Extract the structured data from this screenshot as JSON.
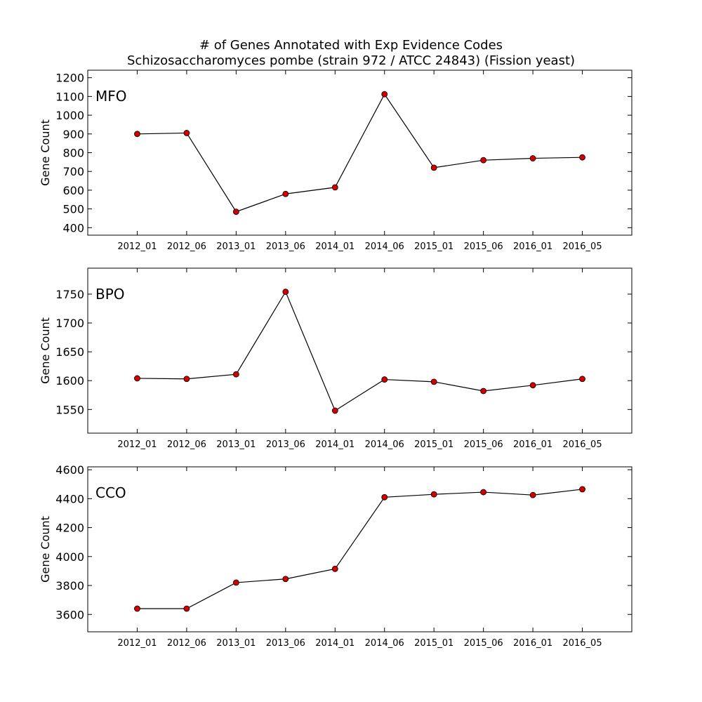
{
  "title": "# of Genes Annotated with Exp Evidence Codes",
  "subtitle": "Schizosaccharomyces pombe (strain 972 / ATCC 24843) (Fission yeast)",
  "colors": {
    "marker": "#d00000",
    "line": "#000000",
    "axes": "#000000"
  },
  "chart_data": [
    {
      "type": "line",
      "label": "MFO",
      "ylabel": "Gene Count",
      "categories": [
        "2012_01",
        "2012_06",
        "2013_01",
        "2013_06",
        "2014_01",
        "2014_06",
        "2015_01",
        "2015_06",
        "2016_01",
        "2016_05"
      ],
      "values": [
        900,
        905,
        485,
        580,
        615,
        1112,
        720,
        760,
        770,
        775
      ],
      "ylim": [
        360,
        1240
      ],
      "yticks": [
        400,
        500,
        600,
        700,
        800,
        900,
        1000,
        1100,
        1200
      ],
      "grid": false
    },
    {
      "type": "line",
      "label": "BPO",
      "ylabel": "Gene Count",
      "categories": [
        "2012_01",
        "2012_06",
        "2013_01",
        "2013_06",
        "2014_01",
        "2014_06",
        "2015_01",
        "2015_06",
        "2016_01",
        "2016_05"
      ],
      "values": [
        1604,
        1603,
        1611,
        1754,
        1548,
        1602,
        1598,
        1582,
        1592,
        1603
      ],
      "ylim": [
        1509,
        1795
      ],
      "yticks": [
        1550,
        1600,
        1650,
        1700,
        1750
      ],
      "grid": false
    },
    {
      "type": "line",
      "label": "CCO",
      "ylabel": "Gene Count",
      "categories": [
        "2012_01",
        "2012_06",
        "2013_01",
        "2013_06",
        "2014_01",
        "2014_06",
        "2015_01",
        "2015_06",
        "2016_01",
        "2016_05"
      ],
      "values": [
        3640,
        3640,
        3820,
        3845,
        3915,
        4410,
        4430,
        4445,
        4425,
        4465
      ],
      "ylim": [
        3480,
        4620
      ],
      "yticks": [
        3600,
        3800,
        4000,
        4200,
        4400,
        4600
      ],
      "grid": false
    }
  ]
}
